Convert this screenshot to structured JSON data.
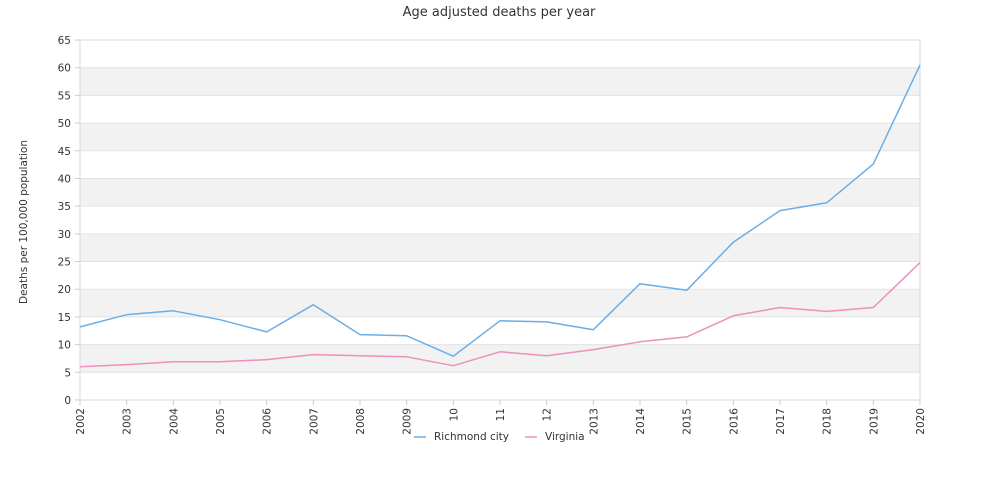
{
  "chart_data": {
    "type": "line",
    "title": "Age adjusted deaths per year",
    "xlabel": "",
    "ylabel": "Deaths per 100,000 population",
    "x": [
      "2002",
      "2003",
      "2004",
      "2005",
      "2006",
      "2007",
      "2008",
      "2009",
      "2010",
      "2011",
      "2012",
      "2013",
      "2014",
      "2015",
      "2016",
      "2017",
      "2018",
      "2019",
      "2020"
    ],
    "x_tick_labels": [
      "2002",
      "2003",
      "2004",
      "2005",
      "2006",
      "2007",
      "2008",
      "2009",
      "10",
      "11",
      "12",
      "2013",
      "2014",
      "2015",
      "2016",
      "2017",
      "2018",
      "2019",
      "2020"
    ],
    "ylim": [
      0,
      65
    ],
    "yticks": [
      0,
      5,
      10,
      15,
      20,
      25,
      30,
      35,
      40,
      45,
      50,
      55,
      60,
      65
    ],
    "grid": "horizontal alternating bands",
    "legend_position": "bottom",
    "series": [
      {
        "name": "Richmond city",
        "color": "#6aaee8",
        "values": [
          13.2,
          15.4,
          16.1,
          14.5,
          12.3,
          17.2,
          11.8,
          11.6,
          7.9,
          14.3,
          14.1,
          12.7,
          21.0,
          19.8,
          28.5,
          34.2,
          35.6,
          42.6,
          60.5
        ]
      },
      {
        "name": "Virginia",
        "color": "#ef8fbf",
        "values": [
          6.0,
          6.4,
          6.9,
          6.9,
          7.3,
          8.2,
          8.0,
          7.8,
          6.2,
          8.7,
          8.0,
          9.1,
          10.5,
          11.4,
          15.2,
          16.7,
          16.0,
          16.7,
          24.8
        ]
      }
    ]
  }
}
